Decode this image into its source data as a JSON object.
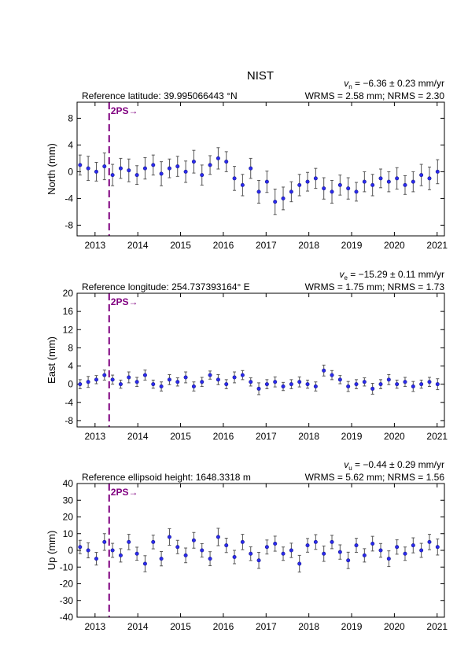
{
  "title": "NIST",
  "chart_data": [
    {
      "type": "scatter",
      "velocity_symbol": "v",
      "velocity_sub": "n",
      "velocity_text": " = −6.36 ± 0.23 mm/yr",
      "stats": "WRMS = 2.58 mm; NRMS = 2.30",
      "reference": "Reference latitude: 39.995066443 °N",
      "ylabel": "North (mm)",
      "annotation": "2PS→",
      "event_x": 2013.33,
      "event_color": "#800080",
      "marker_color": "#2a2aee",
      "error_color": "#555555",
      "xlim": [
        2012.58,
        2021.17
      ],
      "xticks": [
        2013,
        2014,
        2015,
        2016,
        2017,
        2018,
        2019,
        2020,
        2021
      ],
      "ylim": [
        -9.6,
        10.4
      ],
      "yticks": [
        -8,
        -4,
        0,
        4,
        8
      ],
      "x": [
        2012.65,
        2012.84,
        2013.03,
        2013.22,
        2013.41,
        2013.6,
        2013.79,
        2013.98,
        2014.17,
        2014.36,
        2014.55,
        2014.74,
        2014.93,
        2015.12,
        2015.31,
        2015.5,
        2015.69,
        2015.88,
        2016.07,
        2016.26,
        2016.45,
        2016.64,
        2016.83,
        2017.02,
        2017.21,
        2017.4,
        2017.59,
        2017.78,
        2017.97,
        2018.16,
        2018.35,
        2018.54,
        2018.73,
        2018.92,
        2019.11,
        2019.3,
        2019.49,
        2019.68,
        2019.87,
        2020.06,
        2020.25,
        2020.44,
        2020.63,
        2020.82,
        2021.01
      ],
      "values": [
        1,
        0.5,
        0,
        0.8,
        -0.5,
        0.5,
        0.2,
        -0.5,
        0.5,
        1,
        -0.3,
        0.5,
        0.8,
        0,
        1.5,
        -0.5,
        1,
        2,
        1.5,
        -1,
        -2,
        0.5,
        -3,
        -1.5,
        -4.5,
        -4,
        -3,
        -2,
        -1.5,
        -1,
        -2.5,
        -3,
        -2,
        -2.5,
        -3,
        -1.5,
        -2,
        -1,
        -1.5,
        -1,
        -2,
        -1.5,
        -0.5,
        -1,
        0
      ],
      "errors": [
        1.5,
        1.8,
        1.4,
        2,
        1.6,
        1.5,
        1.7,
        1.4,
        1.6,
        1.5,
        1.8,
        1.4,
        1.5,
        1.6,
        1.7,
        1.5,
        1.4,
        1.6,
        1.5,
        1.8,
        1.6,
        1.5,
        1.7,
        1.6,
        1.9,
        1.7,
        1.5,
        1.6,
        1.4,
        1.5,
        1.6,
        1.7,
        1.5,
        1.6,
        1.4,
        1.5,
        1.6,
        1.4,
        1.5,
        1.6,
        1.4,
        1.5,
        1.6,
        1.7,
        1.8
      ]
    },
    {
      "type": "scatter",
      "velocity_symbol": "v",
      "velocity_sub": "e",
      "velocity_text": " = −15.29 ± 0.11 mm/yr",
      "stats": "WRMS = 1.75 mm; NRMS = 1.73",
      "reference": "Reference longitude: 254.737393164° E",
      "ylabel": "East (mm)",
      "annotation": "2PS→",
      "event_x": 2013.33,
      "event_color": "#800080",
      "marker_color": "#2a2aee",
      "error_color": "#555555",
      "xlim": [
        2012.58,
        2021.17
      ],
      "xticks": [
        2013,
        2014,
        2015,
        2016,
        2017,
        2018,
        2019,
        2020,
        2021
      ],
      "ylim": [
        -9.4,
        20
      ],
      "yticks": [
        -8,
        -4,
        0,
        4,
        8,
        12,
        16,
        20
      ],
      "x": [
        2012.65,
        2012.84,
        2013.03,
        2013.22,
        2013.41,
        2013.6,
        2013.79,
        2013.98,
        2014.17,
        2014.36,
        2014.55,
        2014.74,
        2014.93,
        2015.12,
        2015.31,
        2015.5,
        2015.69,
        2015.88,
        2016.07,
        2016.26,
        2016.45,
        2016.64,
        2016.83,
        2017.02,
        2017.21,
        2017.4,
        2017.59,
        2017.78,
        2017.97,
        2018.16,
        2018.35,
        2018.54,
        2018.73,
        2018.92,
        2019.11,
        2019.3,
        2019.49,
        2019.68,
        2019.87,
        2020.06,
        2020.25,
        2020.44,
        2020.63,
        2020.82,
        2021.01
      ],
      "values": [
        0,
        0.5,
        1,
        2,
        1,
        0,
        1.5,
        0.5,
        2,
        0,
        -0.5,
        1,
        0.5,
        1.5,
        -0.5,
        0.5,
        2,
        1,
        0,
        1.5,
        2,
        0.5,
        -1,
        0,
        0.5,
        -0.5,
        0,
        0.5,
        0,
        -0.5,
        3,
        2,
        1,
        -0.5,
        0,
        0.5,
        -1,
        0,
        1,
        0,
        0.5,
        -0.5,
        0,
        0.5,
        0
      ],
      "errors": [
        1,
        1.2,
        0.9,
        1.1,
        1,
        0.9,
        1.2,
        1,
        1.1,
        0.9,
        1,
        1.1,
        0.9,
        1.2,
        1,
        1,
        0.9,
        1.1,
        1,
        1.2,
        1,
        0.9,
        1.3,
        1,
        1.1,
        0.9,
        1,
        1.1,
        0.9,
        1,
        1.2,
        1,
        0.9,
        1.1,
        1,
        0.9,
        1.2,
        1,
        1.1,
        0.9,
        1,
        1.1,
        0.9,
        1,
        1.2
      ]
    },
    {
      "type": "scatter",
      "velocity_symbol": "v",
      "velocity_sub": "u",
      "velocity_text": " = −0.44 ± 0.29 mm/yr",
      "stats": "WRMS = 5.62 mm; NRMS = 1.56",
      "reference": "Reference ellipsoid height: 1648.3318 m",
      "ylabel": "Up (mm)",
      "annotation": "2PS→",
      "event_x": 2013.33,
      "event_color": "#800080",
      "marker_color": "#2a2aee",
      "error_color": "#555555",
      "xlim": [
        2012.58,
        2021.17
      ],
      "xticks": [
        2013,
        2014,
        2015,
        2016,
        2017,
        2018,
        2019,
        2020,
        2021
      ],
      "ylim": [
        -40,
        40
      ],
      "yticks": [
        -40,
        -30,
        -20,
        -10,
        0,
        10,
        20,
        30,
        40
      ],
      "x": [
        2012.65,
        2012.84,
        2013.03,
        2013.22,
        2013.41,
        2013.6,
        2013.79,
        2013.98,
        2014.17,
        2014.36,
        2014.55,
        2014.74,
        2014.93,
        2015.12,
        2015.31,
        2015.5,
        2015.69,
        2015.88,
        2016.07,
        2016.26,
        2016.45,
        2016.64,
        2016.83,
        2017.02,
        2017.21,
        2017.4,
        2017.59,
        2017.78,
        2017.97,
        2018.16,
        2018.35,
        2018.54,
        2018.73,
        2018.92,
        2019.11,
        2019.3,
        2019.49,
        2019.68,
        2019.87,
        2020.06,
        2020.25,
        2020.44,
        2020.63,
        2020.82,
        2021.01
      ],
      "values": [
        2,
        0,
        -5,
        5,
        0,
        -3,
        5,
        -2,
        -8,
        5,
        -5,
        8,
        2,
        -3,
        6,
        0,
        -5,
        8,
        3,
        -4,
        5,
        -2,
        -6,
        2,
        4,
        -2,
        0,
        -8,
        3,
        5,
        -2,
        5,
        -1,
        -6,
        3,
        -3,
        4,
        0,
        -5,
        2,
        -2,
        3,
        0,
        5,
        2
      ],
      "errors": [
        4,
        4.5,
        3.8,
        5,
        4.2,
        4,
        4.6,
        3.9,
        4.8,
        4.1,
        4.3,
        5,
        4,
        4.4,
        4.7,
        4,
        4.2,
        5.2,
        4.3,
        4,
        4.6,
        4.1,
        4.8,
        4.2,
        4.5,
        4,
        4.3,
        5,
        4.1,
        4.4,
        4.6,
        4,
        4.3,
        4.9,
        4.2,
        4,
        4.4,
        4.1,
        4.7,
        4.3,
        4,
        4.5,
        4.2,
        4.6,
        4.8
      ]
    }
  ]
}
